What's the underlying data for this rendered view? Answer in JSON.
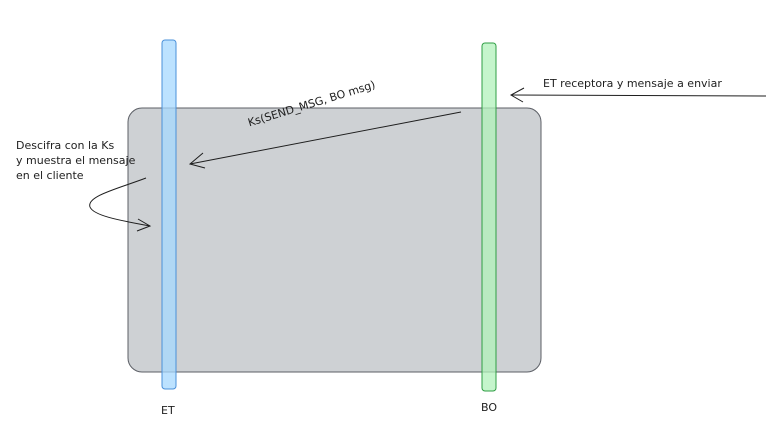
{
  "diagram": {
    "type": "sequence",
    "lanes": [
      {
        "id": "et",
        "label": "ET",
        "color": "#a5d8ff",
        "stroke": "#4a90d9"
      },
      {
        "id": "bo",
        "label": "BO",
        "color": "#b2f2bb",
        "stroke": "#2f9e44"
      }
    ],
    "frame": {
      "fill": "#c6c9cc",
      "stroke": "#5c5f66"
    },
    "messages": [
      {
        "from": "bo",
        "to": "et",
        "label": "Ks(SEND_MSG, BO msg)"
      }
    ],
    "notes": {
      "incoming": "ET receptora y mensaje a enviar",
      "left_lines": [
        "Descifra con la Ks",
        "y muestra el mensaje",
        "en el cliente"
      ]
    }
  }
}
